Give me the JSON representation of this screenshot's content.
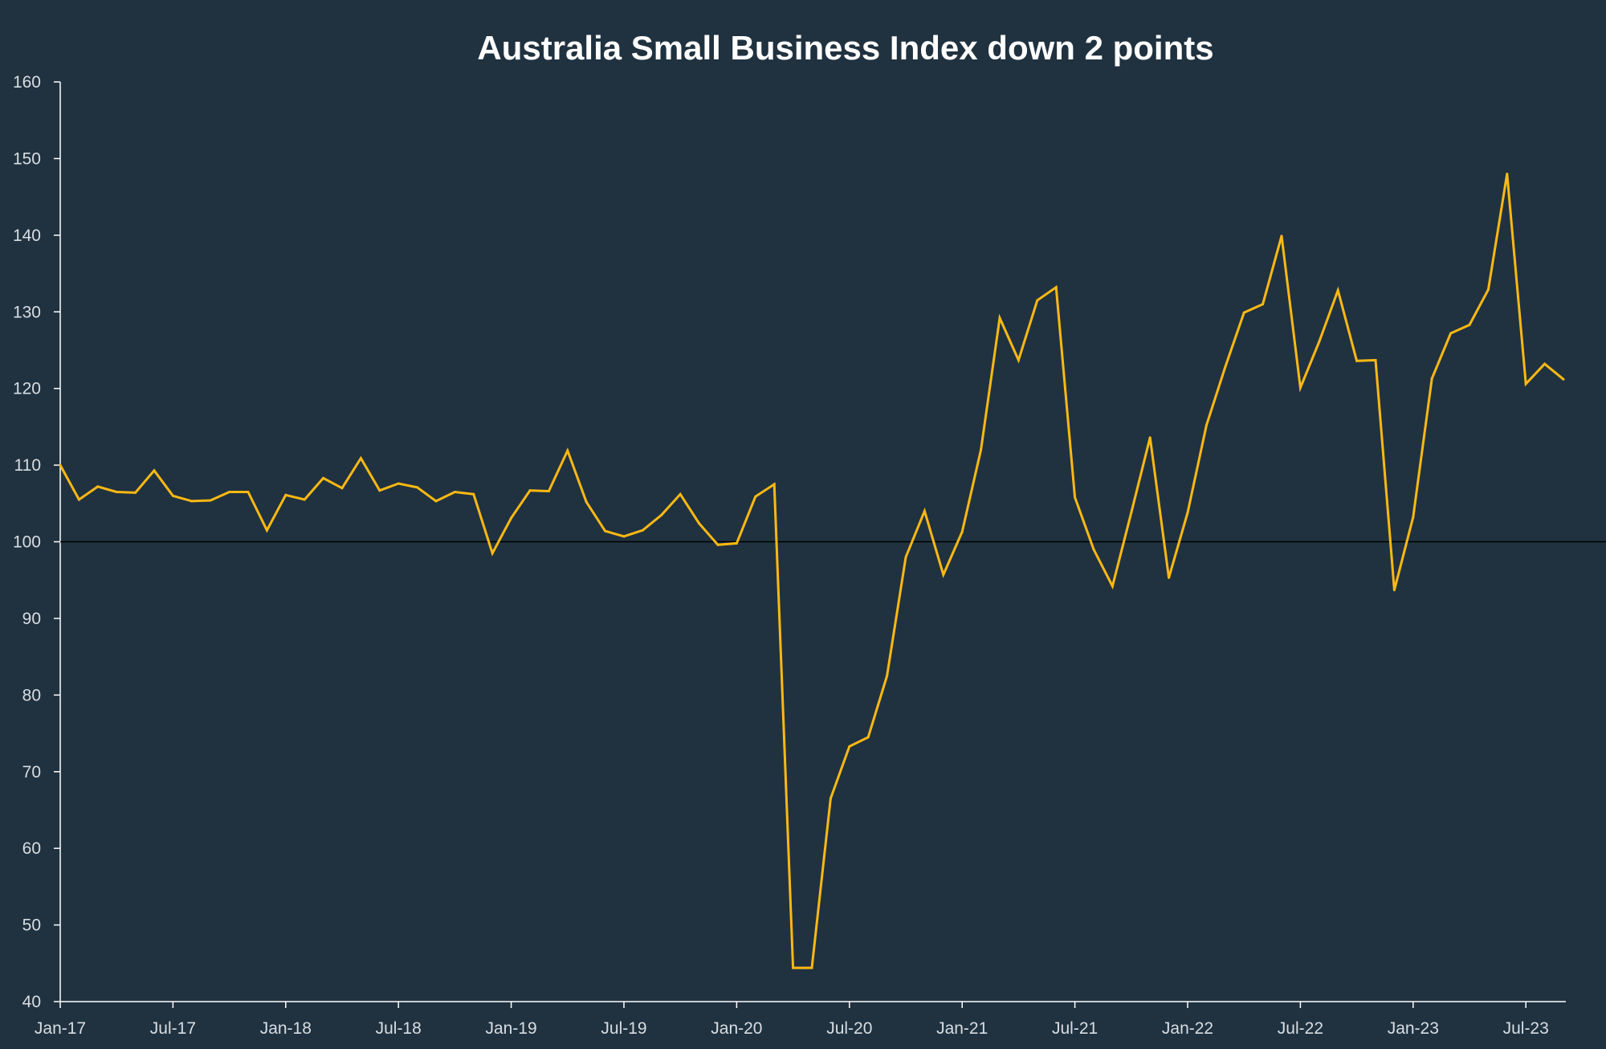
{
  "chart_data": {
    "type": "line",
    "title": "Australia Small Business Index down 2 points",
    "xlabel": "",
    "ylabel": "",
    "ylim": [
      40,
      160
    ],
    "yticks": [
      40,
      50,
      60,
      70,
      80,
      90,
      100,
      110,
      120,
      130,
      140,
      150,
      160
    ],
    "xtick_labels": [
      "Jan-17",
      "Jul-17",
      "Jan-18",
      "Jul-18",
      "Jan-19",
      "Jul-19",
      "Jan-20",
      "Jul-20",
      "Jan-21",
      "Jul-21",
      "Jan-22",
      "Jul-22",
      "Jan-23",
      "Jul-23"
    ],
    "reference_line": 100,
    "grid": false,
    "legend": "none",
    "colors": {
      "background": "#203240",
      "line": "#fdb913",
      "axis": "#ffffff",
      "reference": "#000000",
      "text": "#ffffff"
    },
    "series": [
      {
        "x": [
          "Jan-17",
          "Feb-17",
          "Mar-17",
          "Apr-17",
          "May-17",
          "Jun-17",
          "Jul-17",
          "Aug-17",
          "Sep-17",
          "Oct-17",
          "Nov-17",
          "Dec-17",
          "Jan-18",
          "Feb-18",
          "Mar-18",
          "Apr-18",
          "May-18",
          "Jun-18",
          "Jul-18",
          "Aug-18",
          "Sep-18",
          "Oct-18",
          "Nov-18",
          "Dec-18",
          "Jan-19",
          "Feb-19",
          "Mar-19",
          "Apr-19",
          "May-19",
          "Jun-19",
          "Jul-19",
          "Aug-19",
          "Sep-19",
          "Oct-19",
          "Nov-19",
          "Dec-19",
          "Jan-20",
          "Feb-20",
          "Mar-20",
          "Apr-20",
          "May-20",
          "Jun-20",
          "Jul-20",
          "Aug-20",
          "Sep-20",
          "Oct-20",
          "Nov-20",
          "Dec-20",
          "Jan-21",
          "Feb-21",
          "Mar-21",
          "Apr-21",
          "May-21",
          "Jun-21",
          "Jul-21",
          "Aug-21",
          "Sep-21",
          "Oct-21",
          "Nov-21",
          "Dec-21",
          "Jan-22",
          "Feb-22",
          "Mar-22",
          "Apr-22",
          "May-22",
          "Jun-22",
          "Jul-22",
          "Aug-22",
          "Sep-22",
          "Oct-22",
          "Nov-22",
          "Dec-22",
          "Jan-23",
          "Feb-23",
          "Mar-23",
          "Apr-23",
          "May-23",
          "Jun-23",
          "Jul-23",
          "Aug-23",
          "Sep-23"
        ],
        "values": [
          110.0,
          105.5,
          107.2,
          106.5,
          106.4,
          109.3,
          106.0,
          105.3,
          105.4,
          106.5,
          106.5,
          101.5,
          106.1,
          105.5,
          108.3,
          107.0,
          110.9,
          106.7,
          107.6,
          107.1,
          105.3,
          106.5,
          106.2,
          98.5,
          103.1,
          106.7,
          106.6,
          111.9,
          105.2,
          101.4,
          100.7,
          101.5,
          103.5,
          106.2,
          102.4,
          99.6,
          99.8,
          105.9,
          107.5,
          44.4,
          44.4,
          66.5,
          73.3,
          74.5,
          82.5,
          98.0,
          104.0,
          95.7,
          101.3,
          112.0,
          129.2,
          123.7,
          131.5,
          133.2,
          105.8,
          99.0,
          94.2,
          103.8,
          113.6,
          95.3,
          103.8,
          115.2,
          122.8,
          129.9,
          131.0,
          139.9,
          120.1,
          126.1,
          132.8,
          123.6,
          123.7,
          93.7,
          103.2,
          121.3,
          127.2,
          128.3,
          132.9,
          148.0,
          120.6,
          123.2,
          121.2
        ]
      }
    ]
  }
}
